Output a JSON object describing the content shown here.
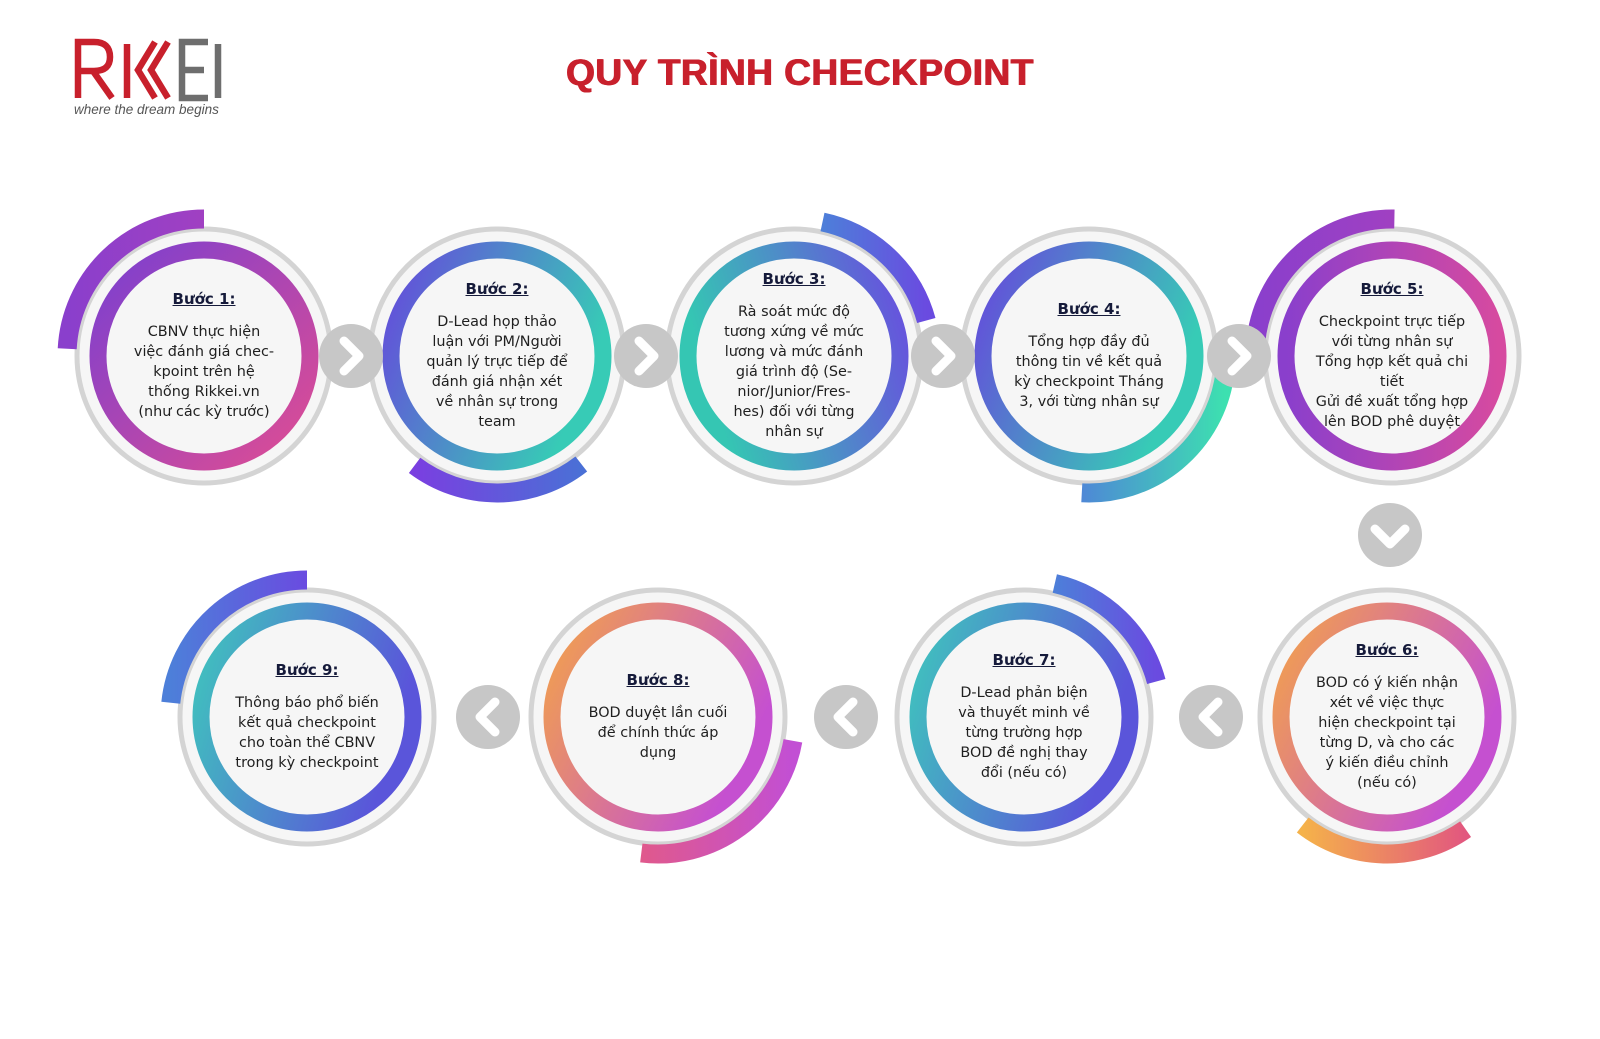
{
  "logo": {
    "text": "RIKKEI",
    "tagline": "where the dream begins"
  },
  "title": "QUY TRÌNH CHECKPOINT",
  "steps": [
    {
      "label": "Bước 1:",
      "text": "CBNV thực hiện\nviệc đánh giá chec-\nkpoint trên hệ\nthống Rikkei.vn\n(như các kỳ trước)"
    },
    {
      "label": "Bước 2:",
      "text": "D-Lead họp thảo\nluận với PM/Người\nquản lý trực tiếp để\nđánh giá nhận xét\nvề nhân sự trong\nteam"
    },
    {
      "label": "Bước 3:",
      "text": "Rà soát mức độ\ntương xứng về mức\nlương và mức đánh\ngiá trình độ (Se-\nnior/Junior/Fres-\nhes) đối với từng\nnhân sự"
    },
    {
      "label": "Bước 4:",
      "text": "Tổng hợp đầy đủ\nthông tin về kết quả\nkỳ checkpoint Tháng\n3, với từng nhân sự"
    },
    {
      "label": "Bước 5:",
      "text": "Checkpoint trực tiếp\nvới từng nhân sự\nTổng hợp kết quả chi tiết\nGửi đề xuất tổng hợp\nlên BOD phê duyệt"
    },
    {
      "label": "Bước 6:",
      "text": "BOD có ý kiến nhận\nxét về việc thực\nhiện checkpoint tại\ntừng D, và cho các\ný kiến điều chỉnh\n(nếu có)"
    },
    {
      "label": "Bước 7:",
      "text": "D-Lead phản biện\nvà thuyết minh về\ntừng trường hợp\nBOD đề nghị thay\nđổi (nếu có)"
    },
    {
      "label": "Bước 8:",
      "text": "BOD duyệt lần cuối\nđể chính thức áp\ndụng"
    },
    {
      "label": "Bước 9:",
      "text": "Thông báo phổ biến\nkết quả checkpoint\ncho toàn thể CBNV\ntrong kỳ checkpoint"
    }
  ],
  "arrows": [
    {
      "icon": "chevron-right-icon",
      "from": 1,
      "to": 2
    },
    {
      "icon": "chevron-right-icon",
      "from": 2,
      "to": 3
    },
    {
      "icon": "chevron-right-icon",
      "from": 3,
      "to": 4
    },
    {
      "icon": "chevron-right-icon",
      "from": 4,
      "to": 5
    },
    {
      "icon": "chevron-down-icon",
      "from": 5,
      "to": 6
    },
    {
      "icon": "chevron-left-icon",
      "from": 6,
      "to": 7
    },
    {
      "icon": "chevron-left-icon",
      "from": 7,
      "to": 8
    },
    {
      "icon": "chevron-left-icon",
      "from": 8,
      "to": 9
    }
  ],
  "colors": {
    "title": "#c8202c",
    "logo": "#c8202c",
    "outer_ring": "#d4d4d4",
    "inner_fill": "#f6f6f6",
    "arrow_circle": "#c7c7c7",
    "purple_pink": [
      "#7b3fd0",
      "#d84a9a"
    ],
    "blue_teal": [
      "#6a4be0",
      "#36c9b8"
    ],
    "orange_pink": [
      "#f3a24a",
      "#c94fcf"
    ]
  }
}
